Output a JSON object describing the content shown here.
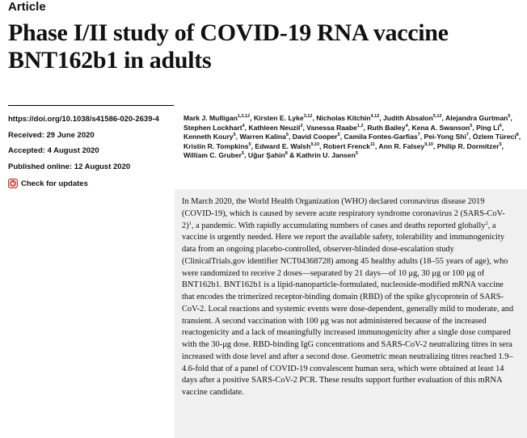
{
  "header": {
    "article_type": "Article"
  },
  "title": "Phase I/II study of COVID-19 RNA vaccine BNT162b1 in adults",
  "meta": {
    "doi": "https://doi.org/10.1038/s41586-020-2639-4",
    "received": "Received: 29 June 2020",
    "accepted": "Accepted: 4 August 2020",
    "published": "Published online: 12 August 2020",
    "check_updates": "Check for updates"
  },
  "authors": [
    {
      "name": "Mark J. Mulligan",
      "aff": "1,2,12"
    },
    {
      "name": "Kirsten E. Lyke",
      "aff": "3,12"
    },
    {
      "name": "Nicholas Kitchin",
      "aff": "4,12"
    },
    {
      "name": "Judith Absalon",
      "aff": "5,12"
    },
    {
      "name": "Alejandra Gurtman",
      "aff": "5"
    },
    {
      "name": "Stephen Lockhart",
      "aff": "4"
    },
    {
      "name": "Kathleen Neuzil",
      "aff": "3"
    },
    {
      "name": "Vanessa Raabe",
      "aff": "1,2"
    },
    {
      "name": "Ruth Bailey",
      "aff": "4"
    },
    {
      "name": "Kena A. Swanson",
      "aff": "5"
    },
    {
      "name": "Ping Li",
      "aff": "6"
    },
    {
      "name": "Kenneth Koury",
      "aff": "5"
    },
    {
      "name": "Warren Kalina",
      "aff": "5"
    },
    {
      "name": "David Cooper",
      "aff": "5"
    },
    {
      "name": "Camila Fontes-Garfias",
      "aff": "7"
    },
    {
      "name": "Pei-Yong Shi",
      "aff": "7"
    },
    {
      "name": "Özlem Türeci",
      "aff": "8"
    },
    {
      "name": "Kristin R. Tompkins",
      "aff": "5"
    },
    {
      "name": "Edward E. Walsh",
      "aff": "9,10"
    },
    {
      "name": "Robert Frenck",
      "aff": "11"
    },
    {
      "name": "Ann R. Falsey",
      "aff": "9,10"
    },
    {
      "name": "Philip R. Dormitzer",
      "aff": "5"
    },
    {
      "name": "William C. Gruber",
      "aff": "5"
    },
    {
      "name": "Uğur Şahin",
      "aff": "8"
    },
    {
      "name": "Kathrin U. Jansen",
      "aff": "5"
    }
  ],
  "abstract": {
    "p1": "In March 2020, the World Health Organization (WHO) declared coronavirus disease 2019 (COVID-19), which is caused by severe acute respiratory syndrome coronavirus 2 (SARS-CoV-2)",
    "ref1": "1",
    "p2": ", a pandemic. With rapidly accumulating numbers of cases and deaths reported globally",
    "ref2": "2",
    "p3": ", a vaccine is urgently needed. Here we report the available safety, tolerability and immunogenicity data from an ongoing placebo-controlled, observer-blinded dose-escalation study (ClinicalTrials.gov identifier NCT04368728) among 45 healthy adults (18–55 years of age), who were randomized to receive 2 doses—separated by 21 days—of 10 μg, 30 μg or 100 μg of BNT162b1. BNT162b1 is a lipid-nanoparticle-formulated, nucleoside-modified mRNA vaccine that encodes the trimerized receptor-binding domain (RBD) of the spike glycoprotein of SARS-CoV-2. Local reactions and systemic events were dose-dependent, generally mild to moderate, and transient. A second vaccination with 100 μg was not administered because of the increased reactogenicity and a lack of meaningfully increased immunogenicity after a single dose compared with the 30-μg dose. RBD-binding IgG concentrations and SARS-CoV-2 neutralizing titres in sera increased with dose level and after a second dose. Geometric mean neutralizing titres reached 1.9–4.6-fold that of a panel of COVID-19 convalescent human sera, which were obtained at least 14 days after a positive SARS-CoV-2 PCR. These results support further evaluation of this mRNA vaccine candidate."
  },
  "colors": {
    "abstract_background": "#f0f0f0",
    "check_icon": "#c0392b"
  }
}
